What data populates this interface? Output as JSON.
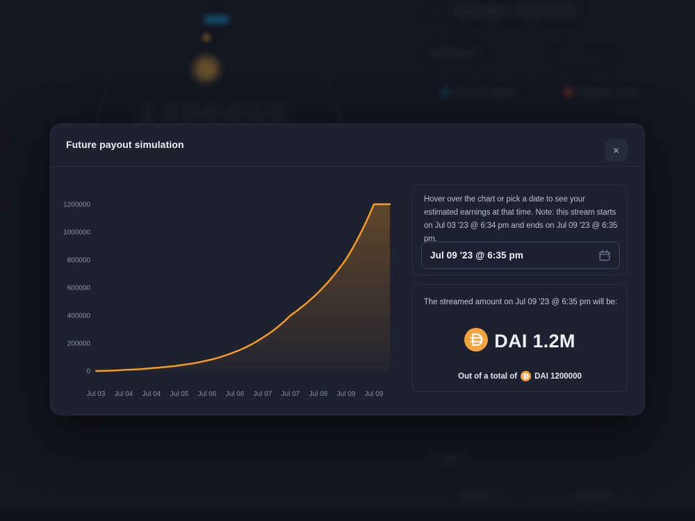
{
  "background": {
    "stream_title": "Stream #LD-6-9",
    "back_arrow": "←",
    "ghost_amount": "1200000",
    "attributes_heading": "Attributes",
    "export_link": "⭳ Export (.csv)",
    "chip1_label": "0x7F9a...B58a",
    "chip2_label": "0x88Db...4c10",
    "chip_arrow": "→",
    "actions_heading": "Actions",
    "sender_label": "Sender",
    "receiver_label": "Receiver",
    "external_icon": "↗",
    "chip1_dot_color": "#15647e",
    "chip2_dot_color": "#b8502c"
  },
  "modal": {
    "title": "Future payout simulation",
    "close_label": "✕",
    "info_text": "Hover over the chart or pick a date to see your estimated earnings at that time. Note: this stream starts on Jul 03 '23 @ 6:34 pm and ends on Jul 09 '23 @ 6:35 pm.",
    "date_input": {
      "value": "Jul 09 '23 @ 6:35 pm",
      "icon": "calendar"
    },
    "result": {
      "line1": "The streamed amount on Jul 09 '23 @ 6:35 pm will be:",
      "amount": "DAI 1.2M",
      "total_prefix": "Out of a total of",
      "total_suffix": "DAI 1200000"
    }
  },
  "chart_data": {
    "type": "area",
    "title": "",
    "xlabel": "",
    "ylabel": "",
    "x": [
      "Jul 03",
      "Jul 04",
      "Jul 04",
      "Jul 05",
      "Jul 06",
      "Jul 06",
      "Jul 07",
      "Jul 07",
      "Jul 08",
      "Jul 09",
      "Jul 09"
    ],
    "values": [
      0,
      7500,
      20000,
      40000,
      75000,
      137000,
      240000,
      400000,
      565000,
      805000,
      1200000
    ],
    "y_ticks": [
      "1200000",
      "1000000",
      "800000",
      "600000",
      "400000",
      "200000",
      "0"
    ],
    "ylim": [
      0,
      1200000
    ],
    "grid": false,
    "legend": false,
    "line_color": "#f89c1c",
    "fill_color": "#f89c1c",
    "note": "streamed amount rises exponentially from 0 on Jul 03 to 1200000 and plateaus at stream end Jul 09"
  },
  "colors": {
    "accent_orange": "#f89c1c",
    "dai_gold": "#f5a33c",
    "modal_bg": "#1d2130",
    "page_bg": "#191d29"
  }
}
